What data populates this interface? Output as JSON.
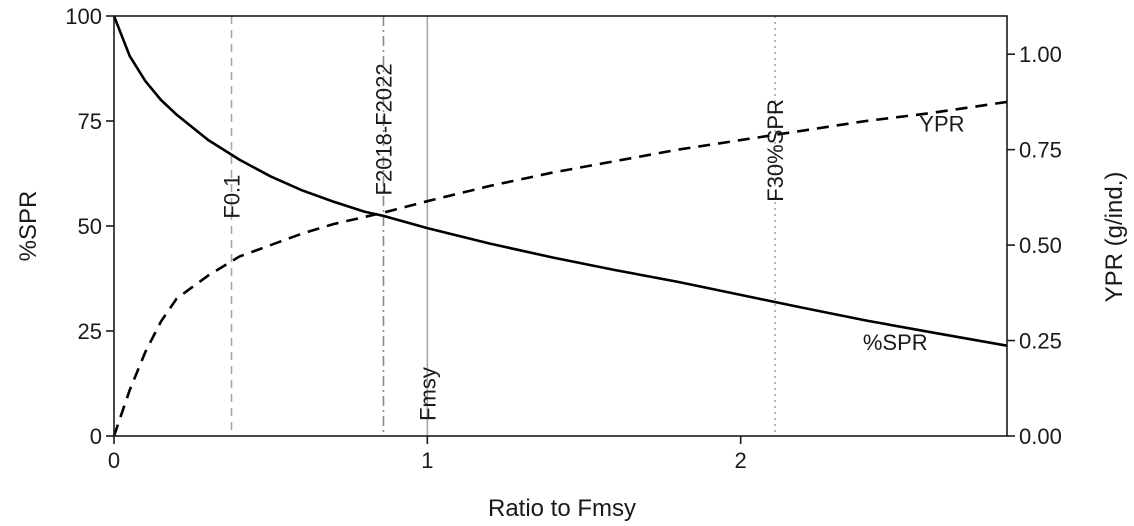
{
  "chart_data": {
    "type": "line",
    "xlabel": "Ratio to Fmsy",
    "ylabel_left": "%SPR",
    "ylabel_right": "YPR (g/ind.)",
    "xlim": [
      0,
      2.85
    ],
    "ylim_left": [
      0,
      100
    ],
    "ylim_right": [
      0,
      1.1
    ],
    "x_ticks": [
      {
        "value": 0,
        "label": "0"
      },
      {
        "value": 1,
        "label": "1"
      },
      {
        "value": 2,
        "label": "2"
      }
    ],
    "y_left_ticks": [
      {
        "value": 0,
        "label": "0"
      },
      {
        "value": 25,
        "label": "25"
      },
      {
        "value": 50,
        "label": "50"
      },
      {
        "value": 75,
        "label": "75"
      },
      {
        "value": 100,
        "label": "100"
      }
    ],
    "y_right_ticks": [
      {
        "value": 0,
        "label": "0.00"
      },
      {
        "value": 0.25,
        "label": "0.25"
      },
      {
        "value": 0.5,
        "label": "0.50"
      },
      {
        "value": 0.75,
        "label": "0.75"
      },
      {
        "value": 1.0,
        "label": "1.00"
      }
    ],
    "series": [
      {
        "name": "%SPR",
        "axis": "left",
        "style": "solid",
        "color": "#000000",
        "x": [
          0,
          0.05,
          0.1,
          0.15,
          0.2,
          0.3,
          0.4,
          0.5,
          0.6,
          0.7,
          0.8,
          0.86,
          1.0,
          1.2,
          1.4,
          1.6,
          1.8,
          2.0,
          2.2,
          2.4,
          2.6,
          2.85
        ],
        "values": [
          100,
          90.5,
          84.5,
          80,
          76.5,
          70.5,
          65.8,
          61.8,
          58.5,
          55.8,
          53.4,
          52.4,
          49.5,
          45.8,
          42.5,
          39.5,
          36.7,
          33.6,
          30.5,
          27.5,
          24.8,
          21.5
        ]
      },
      {
        "name": "YPR",
        "axis": "right",
        "style": "dashed",
        "color": "#000000",
        "x": [
          0,
          0.025,
          0.05,
          0.1,
          0.15,
          0.2,
          0.3,
          0.4,
          0.5,
          0.6,
          0.7,
          0.86,
          1.0,
          1.2,
          1.4,
          1.6,
          1.8,
          2.0,
          2.2,
          2.4,
          2.6,
          2.85
        ],
        "values": [
          0,
          0.06,
          0.12,
          0.22,
          0.3,
          0.36,
          0.42,
          0.47,
          0.5,
          0.53,
          0.555,
          0.585,
          0.615,
          0.655,
          0.69,
          0.72,
          0.75,
          0.775,
          0.8,
          0.825,
          0.845,
          0.875
        ]
      }
    ],
    "reference_lines": [
      {
        "label": "F0.1",
        "x": 0.375,
        "style": "dashed",
        "color": "#a8a8a8",
        "label_y": 57
      },
      {
        "label": "F2018-F2022",
        "x": 0.86,
        "style": "dashdot",
        "color": "#8a8a8a",
        "label_y": 73
      },
      {
        "label": "Fmsy",
        "x": 1.0,
        "style": "solid",
        "color": "#a8a8a8",
        "label_y": 10
      },
      {
        "label": "F30%SPR",
        "x": 2.11,
        "style": "dotted",
        "color": "#a8a8a8",
        "label_y": 68
      }
    ],
    "annotations": [
      {
        "text": "YPR",
        "x": 2.57,
        "y_left": 72.5
      },
      {
        "text": "%SPR",
        "x": 2.39,
        "y_left": 20.5
      }
    ],
    "grid": false,
    "legend": "none"
  }
}
